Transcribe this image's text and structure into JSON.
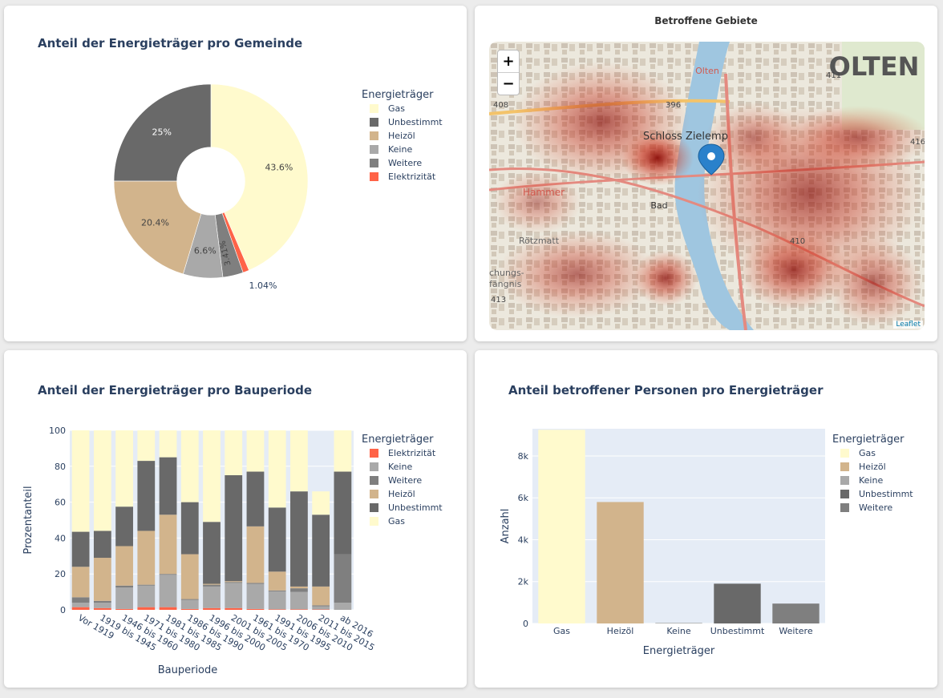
{
  "pie_card": {
    "title": "Anteil der Energieträger pro Gemeinde",
    "legend_title": "Energieträger"
  },
  "map_card": {
    "title": "Betroffene Gebiete",
    "zoom_in": "+",
    "zoom_out": "−",
    "attribution": "Leaflet",
    "labels": [
      "OLTEN",
      "Olten",
      "Schloss Zielemp",
      "Hammer",
      "Bad",
      "Rötzmatt",
      "408",
      "396",
      "411",
      "416",
      "410",
      "413",
      "chungs-",
      "fängnis"
    ],
    "colors": {
      "base": "#ece8dd",
      "river": "#9fc6e0",
      "heat": "#b81d0f",
      "marker": "#2a81cb"
    }
  },
  "stack_card": {
    "title": "Anteil der Energieträger pro Bauperiode",
    "legend_title": "Energieträger"
  },
  "bar_card": {
    "title": "Anteil betroffener Personen pro Energieträger",
    "legend_title": "Energieträger"
  },
  "chart_data": [
    {
      "type": "pie",
      "title": "Anteil der Energieträger pro Gemeinde",
      "hole": 0.35,
      "labels": [
        "Gas",
        "Elektrizität",
        "Weitere",
        "Keine",
        "Heizöl",
        "Unbestimmt"
      ],
      "values": [
        43.6,
        1.04,
        3.41,
        6.6,
        20.4,
        25.0
      ],
      "text": [
        "43.6%",
        "1.04%",
        "3.41%",
        "6.6%",
        "20.4%",
        "25%"
      ],
      "colors": [
        "#fffacd",
        "#ff6347",
        "#7f7f7f",
        "#a9a9a9",
        "#d2b48c",
        "#696969"
      ],
      "legend_order": [
        "Gas",
        "Unbestimmt",
        "Heizöl",
        "Keine",
        "Weitere",
        "Elektrizität"
      ]
    },
    {
      "type": "bar",
      "barmode": "stack",
      "title": "Anteil der Energieträger pro Bauperiode",
      "xlabel": "Bauperiode",
      "ylabel": "Prozentanteil",
      "ylim": [
        0,
        100
      ],
      "yticks": [
        0,
        20,
        40,
        60,
        80,
        100
      ],
      "categories": [
        "Vor 1919",
        "1919 bis 1945",
        "1946 bis 1960",
        "1971 bis 1980",
        "1981 bis 1985",
        "1986 bis 1990",
        "1996 bis 2000",
        "2001 bis 2005",
        "1961 bis 1970",
        "1991 bis 1995",
        "2006 bis 2010",
        "2011 bis 2015",
        "ab 2016"
      ],
      "series": [
        {
          "name": "Elektrizität",
          "color": "#ff6347",
          "values": [
            1.5,
            1,
            0.5,
            1.5,
            1.5,
            0.5,
            1,
            1,
            0.5,
            0.3,
            0.3,
            0.2,
            0
          ]
        },
        {
          "name": "Keine",
          "color": "#a9a9a9",
          "values": [
            2.5,
            3,
            12,
            12,
            18,
            5,
            12,
            14,
            14,
            10,
            9.7,
            1.8,
            4
          ]
        },
        {
          "name": "Weitere",
          "color": "#7f7f7f",
          "values": [
            3,
            1,
            1,
            0.5,
            0.5,
            0.5,
            1,
            0.5,
            0.5,
            0.5,
            2,
            0.5,
            27
          ]
        },
        {
          "name": "Heizöl",
          "color": "#d2b48c",
          "values": [
            17,
            24,
            22,
            30,
            33,
            25,
            0.5,
            0.5,
            31.5,
            10.5,
            1,
            10.5,
            0
          ]
        },
        {
          "name": "Unbestimmt",
          "color": "#696969",
          "values": [
            19.5,
            15,
            22,
            39,
            32,
            29,
            34.5,
            59,
            30.5,
            35.7,
            53,
            40,
            46
          ]
        },
        {
          "name": "Gas",
          "color": "#fffacd",
          "values": [
            56.5,
            56,
            42.5,
            17,
            15,
            40,
            51,
            25,
            23,
            43,
            34,
            13,
            23
          ]
        }
      ]
    },
    {
      "type": "bar",
      "title": "Anteil betroffener Personen pro Energieträger",
      "xlabel": "Energieträger",
      "ylabel": "Anzahl",
      "ylim": [
        0,
        9300
      ],
      "yticks": [
        0,
        2000,
        4000,
        6000,
        8000
      ],
      "ytick_labels": [
        "0",
        "2k",
        "4k",
        "6k",
        "8k"
      ],
      "categories": [
        "Gas",
        "Heizöl",
        "Keine",
        "Unbestimmt",
        "Weitere"
      ],
      "values": [
        9250,
        5800,
        30,
        1900,
        950
      ],
      "colors": [
        "#fffacd",
        "#d2b48c",
        "#a9a9a9",
        "#696969",
        "#7f7f7f"
      ]
    }
  ]
}
